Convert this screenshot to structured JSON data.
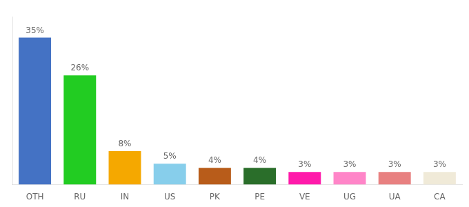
{
  "chart_data": {
    "type": "bar",
    "categories": [
      "OTH",
      "RU",
      "IN",
      "US",
      "PK",
      "PE",
      "VE",
      "UG",
      "UA",
      "CA"
    ],
    "values": [
      35,
      26,
      8,
      5,
      4,
      4,
      3,
      3,
      3,
      3
    ],
    "colors": [
      "#4472c4",
      "#22cc22",
      "#f5a800",
      "#87ceeb",
      "#b85c1a",
      "#2a6e2a",
      "#ff1aaa",
      "#ff85c8",
      "#e88080",
      "#f0ead8"
    ],
    "ylim": [
      0,
      40
    ],
    "data_labels": true,
    "value_labels": [
      "35%",
      "26%",
      "8%",
      "5%",
      "4%",
      "4%",
      "3%",
      "3%",
      "3%",
      "3%"
    ],
    "tick_labels": "x",
    "grid": false
  }
}
